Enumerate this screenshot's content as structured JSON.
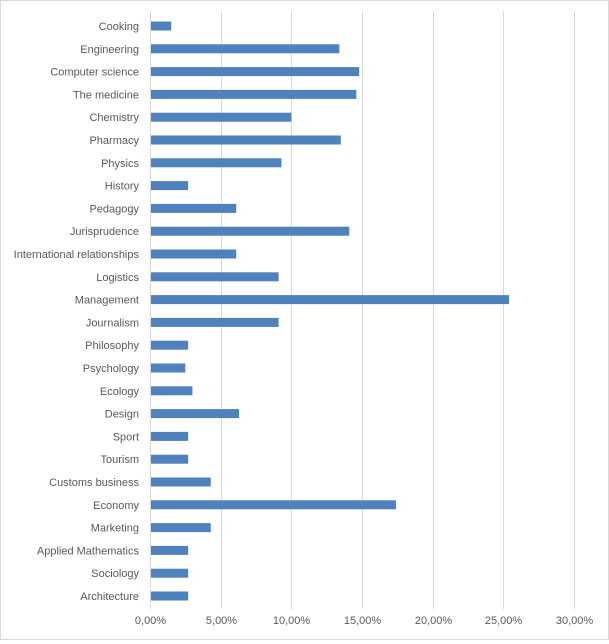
{
  "chart_data": {
    "type": "bar",
    "orientation": "horizontal",
    "categories": [
      "Cooking",
      "Engineering",
      "Computer science",
      "The medicine",
      "Chemistry",
      "Pharmacy",
      "Physics",
      "History",
      "Pedagogy",
      "Jurisprudence",
      "International relationships",
      "Logistics",
      "Management",
      "Journalism",
      "Philosophy",
      "Psychology",
      "Ecology",
      "Design",
      "Sport",
      "Tourism",
      "Customs business",
      "Economy",
      "Marketing",
      "Applied Mathematics",
      "Sociology",
      "Architecture"
    ],
    "values": [
      1.5,
      13.4,
      14.8,
      14.6,
      10.0,
      13.5,
      9.3,
      2.7,
      6.1,
      14.1,
      6.1,
      9.1,
      25.4,
      9.1,
      2.7,
      2.5,
      3.0,
      6.3,
      2.7,
      2.7,
      4.3,
      17.4,
      4.3,
      2.7,
      2.7,
      2.7
    ],
    "xlim": [
      0,
      30
    ],
    "x_ticks": [
      "0,00%",
      "5,00%",
      "10,00%",
      "15,00%",
      "20,00%",
      "25,00%",
      "30,00%"
    ],
    "grid": "vertical",
    "bar_color": "#4f81bd",
    "grid_color": "#d9d9d9",
    "title": "",
    "xlabel": "",
    "ylabel": ""
  }
}
